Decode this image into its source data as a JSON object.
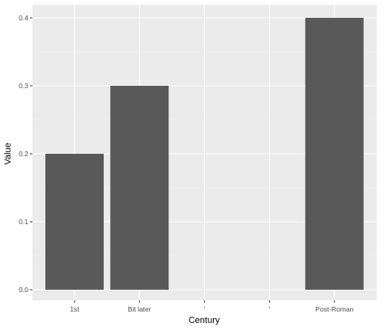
{
  "chart_data": {
    "type": "bar",
    "categories": [
      "1st",
      "Bit later",
      "'",
      "'",
      "Post-Roman"
    ],
    "values": [
      0.2,
      0.3,
      null,
      null,
      0.4
    ],
    "xlabel": "Century",
    "ylabel": "Value",
    "ylim": [
      0.0,
      0.4
    ],
    "yticks": [
      0.0,
      0.1,
      0.2,
      0.3,
      0.4
    ],
    "ytick_labels": [
      "0.0",
      "0.1",
      "0.2",
      "0.3",
      "0.4"
    ],
    "grid": true,
    "legend": "none",
    "colors": {
      "bar": "#595959",
      "panel": "#ebebeb",
      "grid_major": "#ffffff",
      "grid_minor": "#f4f4f4",
      "text": "#4d4d4d"
    }
  }
}
